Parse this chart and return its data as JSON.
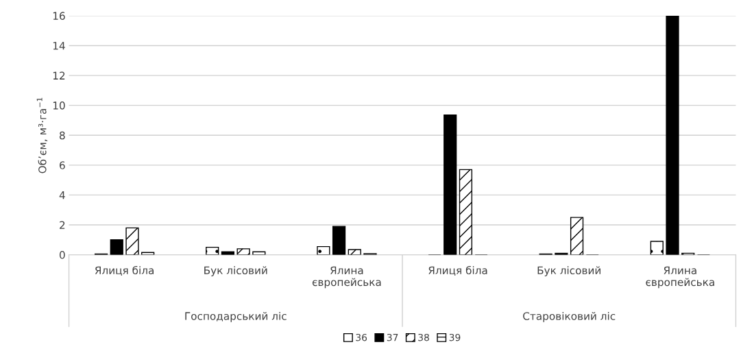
{
  "chart_data": {
    "type": "bar",
    "categories": [
      "Ялиця біла",
      "Бук лісовий",
      "Ялина\nєвропейська",
      "Ялиця біла",
      "Бук лісовий",
      "Ялина\nєвропейська"
    ],
    "annotations": [
      "Господарський ліс",
      "Старовіковий ліс"
    ],
    "ylabel": "Об’єм, м³·га$^{−1}$",
    "ylim": [
      0,
      16
    ],
    "yticks": [
      0,
      2,
      4,
      6,
      8,
      10,
      12,
      14,
      16
    ],
    "grid": "y",
    "legend": "bottom",
    "series": [
      {
        "name": "36",
        "color": "#000000",
        "values": [
          0.05,
          0.5,
          0.55,
          0,
          0.05,
          0.9
        ]
      },
      {
        "name": "37",
        "color": "#000000",
        "values": [
          1.0,
          0.2,
          1.9,
          9.35,
          0.1,
          16.0
        ]
      },
      {
        "name": "38",
        "color": "#000000",
        "values": [
          1.8,
          0.4,
          0.35,
          5.7,
          2.5,
          0.1
        ]
      },
      {
        "name": "39",
        "color": "#000000",
        "values": [
          0.15,
          0.2,
          0.07,
          0,
          0,
          0
        ]
      }
    ]
  }
}
